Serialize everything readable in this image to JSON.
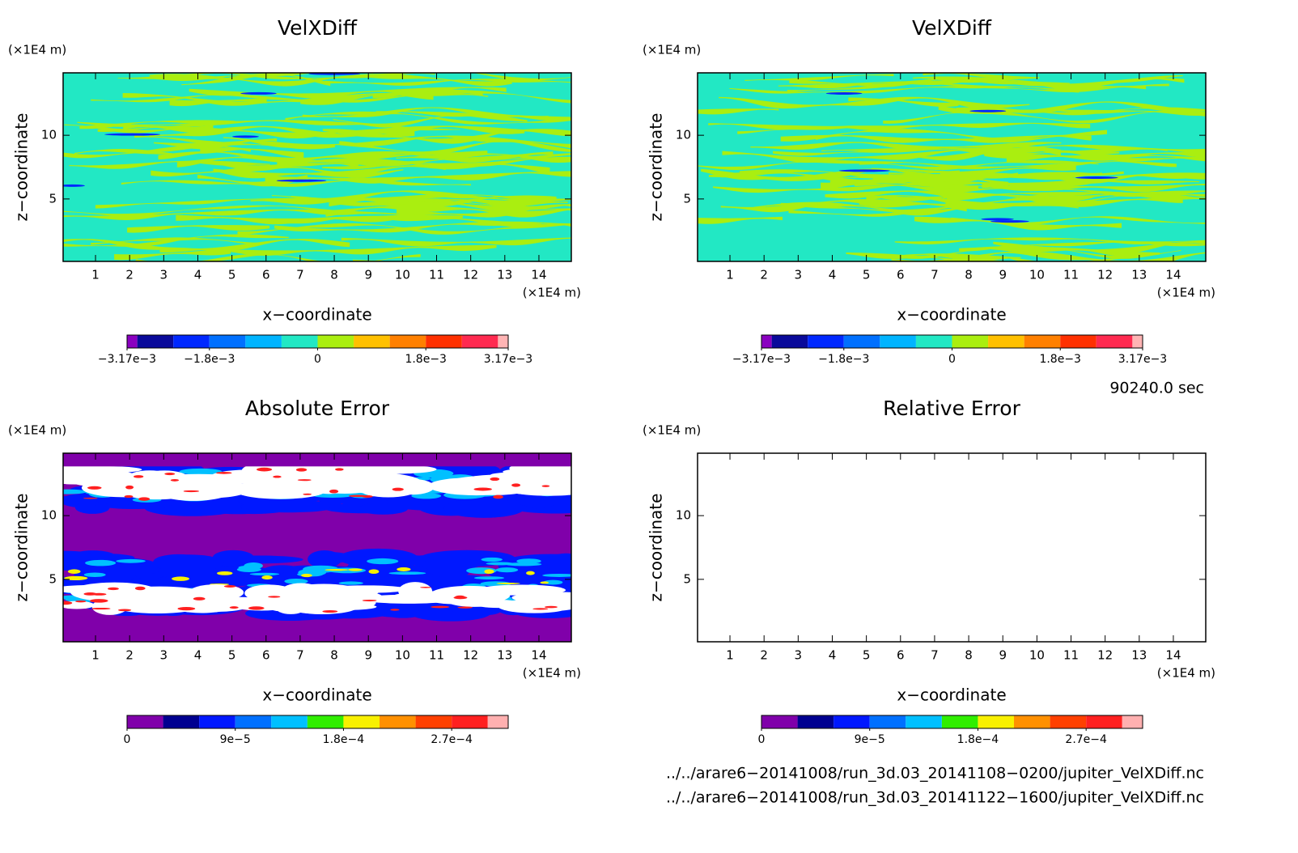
{
  "chart_data": [
    {
      "type": "contour",
      "title": "VelXDiff",
      "xlabel": "x−coordinate",
      "ylabel": "z−coordinate",
      "xunit": "(×1E4 m)",
      "yunit": "(×1E4 m)",
      "xlim": [
        0.05,
        14.95
      ],
      "ylim": [
        0.1,
        14.9
      ],
      "xticks": [
        1,
        2,
        3,
        4,
        5,
        6,
        7,
        8,
        9,
        10,
        11,
        12,
        13,
        14
      ],
      "yticks": [
        5,
        10
      ],
      "colorbar": {
        "bounds": [
          -0.00317,
          -0.003,
          -0.0024,
          -0.0018,
          -0.0012,
          -0.0006,
          0,
          0.0006,
          0.0012,
          0.0018,
          0.0024,
          0.003,
          0.00317
        ],
        "colors": [
          "#8a00c0",
          "#0a0a9a",
          "#0028ff",
          "#0070ff",
          "#00b4ff",
          "#22e8c4",
          "#aaee10",
          "#ffc000",
          "#ff8000",
          "#ff3000",
          "#ff2a50",
          "#ffb4b4"
        ],
        "ticks": [
          {
            "value": -0.00317,
            "label": "−3.17e−3"
          },
          {
            "value": -0.0018,
            "label": "−1.8e−3"
          },
          0,
          {
            "value": 0.0018,
            "label": "1.8e−3"
          },
          {
            "value": 0.00317,
            "label": "3.17e−3"
          }
        ]
      }
    },
    {
      "type": "contour",
      "title": "VelXDiff",
      "xlabel": "x−coordinate",
      "ylabel": "z−coordinate",
      "xunit": "(×1E4 m)",
      "yunit": "(×1E4 m)",
      "xlim": [
        0.05,
        14.95
      ],
      "ylim": [
        0.1,
        14.9
      ],
      "xticks": [
        1,
        2,
        3,
        4,
        5,
        6,
        7,
        8,
        9,
        10,
        11,
        12,
        13,
        14
      ],
      "yticks": [
        5,
        10
      ],
      "colorbar": {
        "bounds": [
          -0.00317,
          -0.003,
          -0.0024,
          -0.0018,
          -0.0012,
          -0.0006,
          0,
          0.0006,
          0.0012,
          0.0018,
          0.0024,
          0.003,
          0.00317
        ],
        "colors": [
          "#8a00c0",
          "#0a0a9a",
          "#0028ff",
          "#0070ff",
          "#00b4ff",
          "#22e8c4",
          "#aaee10",
          "#ffc000",
          "#ff8000",
          "#ff3000",
          "#ff2a50",
          "#ffb4b4"
        ],
        "ticks": [
          {
            "value": -0.00317,
            "label": "−3.17e−3"
          },
          {
            "value": -0.0018,
            "label": "−1.8e−3"
          },
          0,
          {
            "value": 0.0018,
            "label": "1.8e−3"
          },
          {
            "value": 0.00317,
            "label": "3.17e−3"
          }
        ]
      }
    },
    {
      "type": "contour",
      "title": "Absolute Error",
      "xlabel": "x−coordinate",
      "ylabel": "z−coordinate",
      "xunit": "(×1E4 m)",
      "yunit": "(×1E4 m)",
      "xlim": [
        0.05,
        14.95
      ],
      "ylim": [
        0.1,
        14.9
      ],
      "xticks": [
        1,
        2,
        3,
        4,
        5,
        6,
        7,
        8,
        9,
        10,
        11,
        12,
        13,
        14
      ],
      "yticks": [
        5,
        10
      ],
      "colorbar": {
        "bounds": [
          0,
          3e-05,
          6e-05,
          9e-05,
          0.00012,
          0.00015,
          0.00018,
          0.00021,
          0.00024,
          0.00027,
          0.0003,
          0.000317
        ],
        "colors": [
          "#8000aa",
          "#000090",
          "#0018ff",
          "#0070ff",
          "#00c0ff",
          "#30ee00",
          "#f8f000",
          "#ff9000",
          "#ff4000",
          "#ff2020",
          "#ffb0b0"
        ],
        "ticks": [
          0,
          {
            "value": 9e-05,
            "label": "9e−5"
          },
          {
            "value": 0.00018,
            "label": "1.8e−4"
          },
          {
            "value": 0.00027,
            "label": "2.7e−4"
          }
        ]
      }
    },
    {
      "type": "contour",
      "title": "Relative Error",
      "xlabel": "x−coordinate",
      "ylabel": "z−coordinate",
      "xunit": "(×1E4 m)",
      "yunit": "(×1E4 m)",
      "xlim": [
        0.05,
        14.95
      ],
      "ylim": [
        0.1,
        14.9
      ],
      "xticks": [
        1,
        2,
        3,
        4,
        5,
        6,
        7,
        8,
        9,
        10,
        11,
        12,
        13,
        14
      ],
      "yticks": [
        5,
        10
      ],
      "colorbar": {
        "bounds": [
          0,
          3e-05,
          6e-05,
          9e-05,
          0.00012,
          0.00015,
          0.00018,
          0.00021,
          0.00024,
          0.00027,
          0.0003,
          0.000317
        ],
        "colors": [
          "#8000aa",
          "#000090",
          "#0018ff",
          "#0070ff",
          "#00c0ff",
          "#30ee00",
          "#f8f000",
          "#ff9000",
          "#ff4000",
          "#ff2020",
          "#ffb0b0"
        ],
        "ticks": [
          0,
          {
            "value": 9e-05,
            "label": "9e−5"
          },
          {
            "value": 0.00018,
            "label": "1.8e−4"
          },
          {
            "value": 0.00027,
            "label": "2.7e−4"
          }
        ]
      }
    }
  ],
  "annotations": {
    "time": "90240.0 sec",
    "files": [
      "../../arare6−20141008/run_3d.03_20141108−0200/jupiter_VelXDiff.nc",
      "../../arare6−20141008/run_3d.03_20141122−1600/jupiter_VelXDiff.nc"
    ]
  }
}
